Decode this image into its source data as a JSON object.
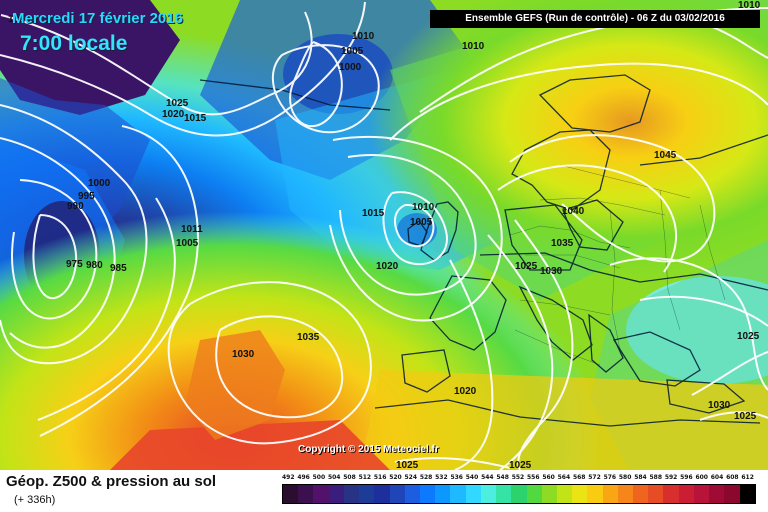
{
  "header": {
    "date_title": "Mercredi 17 février 2016",
    "time_title": "7:00 locale",
    "run_label": "Ensemble GEFS  (Run de contrôle)  - 06 Z du 03/02/2016",
    "copyright": "Copyright © 2015 Meteociel.fr"
  },
  "footer": {
    "title": "Géop. Z500 & pression au sol",
    "subtitle": "(+ 336h)"
  },
  "legend": {
    "values": [
      "492",
      "496",
      "500",
      "504",
      "508",
      "512",
      "516",
      "520",
      "524",
      "528",
      "532",
      "536",
      "540",
      "544",
      "548",
      "552",
      "556",
      "560",
      "564",
      "568",
      "572",
      "576",
      "580",
      "584",
      "588",
      "592",
      "596",
      "600",
      "604",
      "608",
      "612"
    ],
    "colors": [
      "#2a0d2f",
      "#3c0f4e",
      "#52126b",
      "#3b1e7b",
      "#283386",
      "#1c3c98",
      "#1c2f9c",
      "#1f45b8",
      "#1d5de0",
      "#0c79ff",
      "#0d98ff",
      "#1fb9ff",
      "#31d8ff",
      "#4ceee0",
      "#36e3a6",
      "#2cd36c",
      "#51d93f",
      "#8ddc23",
      "#c2e417",
      "#ebe314",
      "#f9cc12",
      "#f8a613",
      "#f6851a",
      "#ef641f",
      "#e64d24",
      "#d72f2d",
      "#cb1d33",
      "#b81338",
      "#9f0b35",
      "#8b072e",
      "#000000"
    ]
  },
  "map": {
    "isobar_labels": [
      "1010",
      "1010",
      "1010",
      "1005",
      "1000",
      "1025",
      "1020",
      "1015",
      "1000",
      "995",
      "990",
      "1011",
      "1005",
      "975",
      "980",
      "985",
      "1015",
      "1010",
      "1005",
      "1020",
      "1035",
      "1030",
      "1020",
      "1025",
      "1030",
      "1040",
      "1035",
      "1045",
      "1025",
      "1030",
      "1025",
      "1025",
      "1025",
      "1010"
    ]
  }
}
